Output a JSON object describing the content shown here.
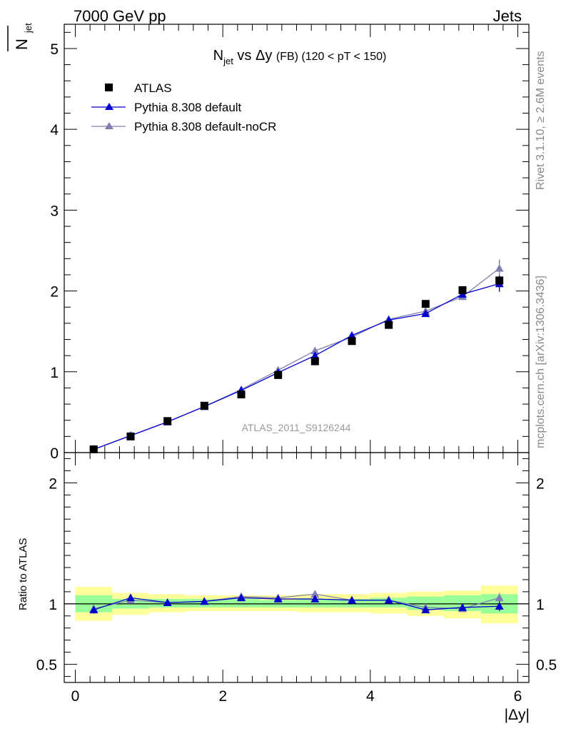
{
  "header": {
    "energy": "7000 GeV pp",
    "category": "Jets"
  },
  "side": {
    "rivet": "Rivet 3.1.10, ≥ 2.6M events",
    "mcplots": "mcplots.cern.ch [arXiv:1306.3436]"
  },
  "watermark": "ATLAS_2011_S9126244",
  "chart_data": [
    {
      "type": "scatter",
      "title_main": "N",
      "title_sub": "jet",
      "title_mid": " vs Δy ",
      "title_fb": "(FB)",
      "title_tail": " (120 < pT < 150)",
      "ylabel_main": "N",
      "ylabel_sub": "jet",
      "ylim": [
        0,
        5.3
      ],
      "xlim": [
        -0.15,
        6.15
      ],
      "yticks": [
        "0",
        "1",
        "2",
        "3",
        "4",
        "5"
      ],
      "x": [
        0.25,
        0.75,
        1.25,
        1.75,
        2.25,
        2.75,
        3.25,
        3.75,
        4.25,
        4.75,
        5.25,
        5.75
      ],
      "series": [
        {
          "name": "ATLAS",
          "color": "#000000",
          "marker": "square",
          "values": [
            0.04,
            0.2,
            0.39,
            0.58,
            0.72,
            0.96,
            1.13,
            1.38,
            1.58,
            1.84,
            2.01,
            2.13
          ]
        },
        {
          "name": "Pythia 8.308 default",
          "color": "#0000cc",
          "marker": "triangle",
          "values": [
            0.04,
            0.21,
            0.38,
            0.57,
            0.77,
            0.99,
            1.2,
            1.45,
            1.64,
            1.72,
            1.96,
            2.09
          ],
          "errors": [
            0,
            0,
            0,
            0,
            0,
            0,
            0,
            0,
            0,
            0.02,
            0.03,
            0.1
          ]
        },
        {
          "name": "Pythia 8.308 default-noCR",
          "color": "#8080b0",
          "marker": "triangle",
          "values": [
            0.04,
            0.21,
            0.38,
            0.57,
            0.78,
            1.02,
            1.26,
            1.43,
            1.65,
            1.75,
            1.93,
            2.28
          ],
          "errors": [
            0,
            0,
            0,
            0,
            0,
            0,
            0,
            0,
            0,
            0.02,
            0.04,
            0.11
          ]
        }
      ]
    },
    {
      "type": "scatter",
      "ylabel": "Ratio to ATLAS",
      "xlabel": "|Δy|",
      "ylim": [
        0.35,
        2.25
      ],
      "xlim": [
        -0.15,
        6.15
      ],
      "yticks": [
        "0.5",
        "1",
        "2"
      ],
      "xticks": [
        "0",
        "2",
        "4",
        "6"
      ],
      "bands": {
        "x_edges": [
          0,
          0.5,
          1.0,
          1.5,
          2.0,
          2.5,
          3.0,
          3.5,
          4.0,
          4.5,
          5.0,
          5.5,
          6.0
        ],
        "yellow_lo": [
          0.86,
          0.91,
          0.93,
          0.94,
          0.94,
          0.94,
          0.93,
          0.93,
          0.92,
          0.9,
          0.88,
          0.84
        ],
        "yellow_hi": [
          1.14,
          1.09,
          1.08,
          1.07,
          1.07,
          1.07,
          1.08,
          1.08,
          1.09,
          1.1,
          1.11,
          1.15
        ],
        "green_lo": [
          0.93,
          0.96,
          0.97,
          0.97,
          0.97,
          0.97,
          0.97,
          0.97,
          0.97,
          0.95,
          0.94,
          0.92
        ],
        "green_hi": [
          1.07,
          1.04,
          1.04,
          1.04,
          1.04,
          1.03,
          1.04,
          1.04,
          1.05,
          1.06,
          1.07,
          1.08
        ],
        "yellow_color": "#ffff99",
        "green_color": "#99ff99"
      },
      "series": [
        {
          "name": "Pythia 8.308 default",
          "color": "#0000cc",
          "values": [
            0.95,
            1.05,
            1.01,
            1.02,
            1.05,
            1.04,
            1.04,
            1.03,
            1.03,
            0.95,
            0.97,
            0.98
          ],
          "errors": [
            0.03,
            0.02,
            0.01,
            0.01,
            0.01,
            0.01,
            0.01,
            0.01,
            0.01,
            0.01,
            0.02,
            0.04
          ]
        },
        {
          "name": "Pythia 8.308 default-noCR",
          "color": "#8080b0",
          "values": [
            0.96,
            1.03,
            1.01,
            1.02,
            1.06,
            1.05,
            1.08,
            1.03,
            1.03,
            0.97,
            0.96,
            1.05
          ],
          "errors": [
            0.03,
            0.02,
            0.01,
            0.01,
            0.01,
            0.01,
            0.01,
            0.01,
            0.01,
            0.01,
            0.02,
            0.04
          ]
        }
      ]
    }
  ]
}
